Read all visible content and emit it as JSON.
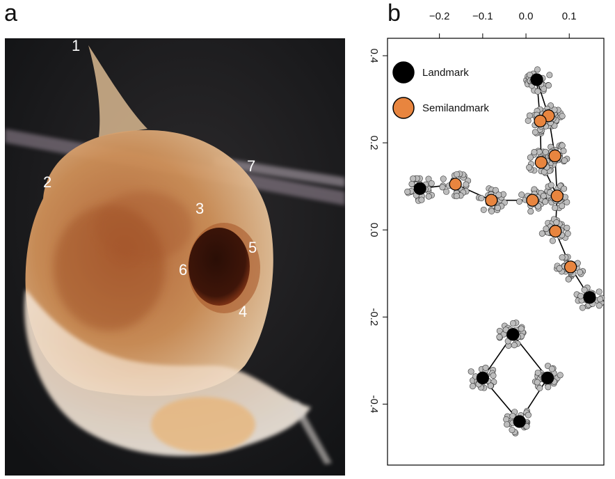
{
  "panels": {
    "a_label": "a",
    "b_label": "b"
  },
  "photo": {
    "landmark_labels": [
      "1",
      "2",
      "3",
      "4",
      "5",
      "6",
      "7"
    ]
  },
  "chart_data": {
    "type": "scatter",
    "title": "",
    "xlabel": "",
    "ylabel": "",
    "xlim": [
      -0.32,
      0.18
    ],
    "ylim": [
      -0.54,
      0.44
    ],
    "x_ticks": [
      -0.2,
      -0.1,
      0.0,
      0.1
    ],
    "x_tick_labels": [
      "−0.2",
      "−0.1",
      "0.0",
      "0.1"
    ],
    "y_ticks": [
      0.4,
      0.2,
      0.0,
      -0.2,
      -0.4
    ],
    "y_tick_labels": [
      "0.4",
      "0.2",
      "0.0",
      "-0.2",
      "-0.4"
    ],
    "x_axis_position": "top",
    "grid": false,
    "legend": {
      "position": "top-left",
      "entries": [
        {
          "label": "Landmark",
          "color": "#000000"
        },
        {
          "label": "Semilandmark",
          "color": "#e8853f"
        }
      ]
    },
    "series": [
      {
        "name": "Landmark",
        "color": "#000000",
        "points": [
          {
            "x": 0.025,
            "y": 0.345
          },
          {
            "x": -0.245,
            "y": 0.095
          },
          {
            "x": 0.147,
            "y": -0.155
          },
          {
            "x": -0.03,
            "y": -0.24
          },
          {
            "x": -0.1,
            "y": -0.34
          },
          {
            "x": 0.05,
            "y": -0.34
          },
          {
            "x": -0.015,
            "y": -0.44
          }
        ]
      },
      {
        "name": "Semilandmark",
        "color": "#e8853f",
        "points": [
          {
            "x": 0.052,
            "y": 0.262
          },
          {
            "x": 0.033,
            "y": 0.25
          },
          {
            "x": 0.067,
            "y": 0.17
          },
          {
            "x": 0.035,
            "y": 0.155
          },
          {
            "x": 0.072,
            "y": 0.078
          },
          {
            "x": 0.068,
            "y": -0.003
          },
          {
            "x": 0.103,
            "y": -0.085
          },
          {
            "x": -0.163,
            "y": 0.105
          },
          {
            "x": -0.08,
            "y": 0.068
          },
          {
            "x": 0.015,
            "y": 0.068
          }
        ]
      }
    ],
    "outline_color": "#000000",
    "spread_points_color": "#bdbdbd"
  }
}
